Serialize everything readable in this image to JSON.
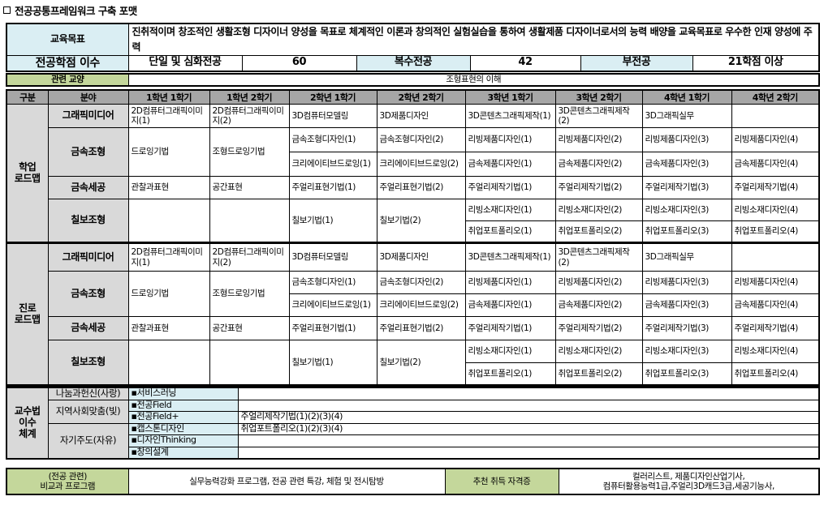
{
  "title": "전공공통프레임워크 구축 포맷",
  "goal": {
    "label": "교육목표",
    "text": "진취적이며 창조적인 생활조형 디자이너 양성을 목표로 체계적인 이론과 창의적인 실험실습을 통하여 생활제품 디자이너로서의 능력 배양을 교육목표로 우수한 인재 양성에 주력"
  },
  "credits": {
    "label": "전공학점 이수",
    "single_label": "단일 및 심화전공",
    "single_value": "60",
    "double_label": "복수전공",
    "double_value": "42",
    "minor_label": "부전공",
    "minor_value": "21학점 이상"
  },
  "related": {
    "label": "관련 교양",
    "value": "조형표현의 이해"
  },
  "roadmap": {
    "headers": [
      "구분",
      "분야",
      "1학년 1학기",
      "1학년 2학기",
      "2학년 1학기",
      "2학년 2학기",
      "3학년 1학기",
      "3학년 2학기",
      "4학년 1학기",
      "4학년 2학기"
    ],
    "sections": [
      {
        "label": "학업\n로드맵",
        "fields": [
          {
            "name": "그래픽미디어",
            "cells": [
              "2D컴퓨터그래픽이미지(1)",
              "2D컴퓨터그래픽이미지(2)",
              "3D컴퓨터모델링",
              "3D제품디자인",
              "3D콘텐츠그래픽제작(1)",
              "3D콘텐츠그래픽제작(2)",
              "3D그래픽실무",
              ""
            ]
          },
          {
            "name": "금속조형",
            "cells": [
              "드로잉기법",
              "조형드로잉기법",
              [
                "금속조형디자인(1)",
                "크리에이티브드로잉(1)"
              ],
              [
                "금속조형디자인(2)",
                "크리에이티브드로잉(2)"
              ],
              [
                "리빙제품디자인(1)",
                "금속제품디자인(1)"
              ],
              [
                "리빙제품디자인(2)",
                "금속제품디자인(2)"
              ],
              [
                "리빙제품디자인(3)",
                "금속제품디자인(3)"
              ],
              [
                "리빙제품디자인(4)",
                "금속제품디자인(4)"
              ]
            ]
          },
          {
            "name": "금속세공",
            "cells": [
              "관찰과표현",
              "공간표현",
              "주얼리표현기법(1)",
              "주얼리표현기법(2)",
              "주얼리제작기법(1)",
              "주얼리제작기법(2)",
              "주얼리제작기법(3)",
              "주얼리제작기법(4)"
            ]
          },
          {
            "name": "칠보조형",
            "cells": [
              "",
              "",
              "칠보기법(1)",
              "칠보기법(2)",
              [
                "리빙소재디자인(1)",
                "취업포트폴리오(1)"
              ],
              [
                "리빙소재디자인(2)",
                "취업포트폴리오(2)"
              ],
              [
                "리빙소재디자인(3)",
                "취업포트폴리오(3)"
              ],
              [
                "리빙소재디자인(4)",
                "취업포트폴리오(4)"
              ]
            ]
          }
        ]
      },
      {
        "label": "진로\n로드맵",
        "fields": [
          {
            "name": "그래픽미디어",
            "cells": [
              "2D컴퓨터그래픽이미지(1)",
              "2D컴퓨터그래픽이미지(2)",
              "3D컴퓨터모델링",
              "3D제품디자인",
              "3D콘텐츠그래픽제작(1)",
              "3D콘텐츠그래픽제작(2)",
              "3D그래픽실무",
              ""
            ]
          },
          {
            "name": "금속조형",
            "cells": [
              "드로잉기법",
              "조형드로잉기법",
              [
                "금속조형디자인(1)",
                "크리에이티브드로잉(1)"
              ],
              [
                "금속조형디자인(2)",
                "크리에이티브드로잉(2)"
              ],
              [
                "리빙제품디자인(1)",
                "금속제품디자인(1)"
              ],
              [
                "리빙제품디자인(2)",
                "금속제품디자인(2)"
              ],
              [
                "리빙제품디자인(3)",
                "금속제품디자인(3)"
              ],
              [
                "리빙제품디자인(4)",
                "금속제품디자인(4)"
              ]
            ]
          },
          {
            "name": "금속세공",
            "cells": [
              "관찰과표현",
              "공간표현",
              "주얼리표현기법(1)",
              "주얼리표현기법(2)",
              "주얼리제작기법(1)",
              "주얼리제작기법(2)",
              "주얼리제작기법(3)",
              "주얼리제작기법(4)"
            ]
          },
          {
            "name": "칠보조형",
            "cells": [
              "",
              "",
              "칠보기법(1)",
              "칠보기법(2)",
              [
                "리빙소재디자인(1)",
                "취업포트폴리오(1)"
              ],
              [
                "리빙소재디자인(2)",
                "취업포트폴리오(2)"
              ],
              [
                "리빙소재디자인(3)",
                "취업포트폴리오(3)"
              ],
              [
                "리빙소재디자인(4)",
                "취업포트폴리오(4)"
              ]
            ]
          }
        ]
      }
    ]
  },
  "pedagogy": {
    "label": "교수법\n이수\n체계",
    "groups": [
      {
        "name": "나눔과헌신(사랑)",
        "items": [
          {
            "method": "▪서비스러닝",
            "courses": ""
          }
        ]
      },
      {
        "name": "지역사회맞춤(빛)",
        "items": [
          {
            "method": "▪전공Field",
            "courses": ""
          },
          {
            "method": "▪전공Field+",
            "courses": "주얼리제작기법(1)(2)(3)(4)"
          }
        ]
      },
      {
        "name": "자기주도(자유)",
        "items": [
          {
            "method": "▪캡스톤디자인",
            "courses": "취업포트폴리오(1)(2)(3)(4)"
          },
          {
            "method": "▪디자인Thinking",
            "courses": ""
          },
          {
            "method": "▪창의설계",
            "courses": ""
          }
        ]
      }
    ]
  },
  "extra": {
    "label_line1": "(전공 관련)",
    "label_line2": "비교과 프로그램",
    "programs": "실무능력강화 프로그램, 전공 관련 특강,  체험 및 전시탐방",
    "cert_label": "추천 취득 자격증",
    "certs_line1": "컬러리스트, 제품디자인산업기사,",
    "certs_line2": "컴퓨터활용능력1급,주얼리3D캐드3급,세공기능사,"
  },
  "colors": {
    "header_blue": "#daeef3",
    "header_gray": "#a6a6a6",
    "label_gray": "#d9d9d9",
    "label_green": "#c4d79b"
  }
}
